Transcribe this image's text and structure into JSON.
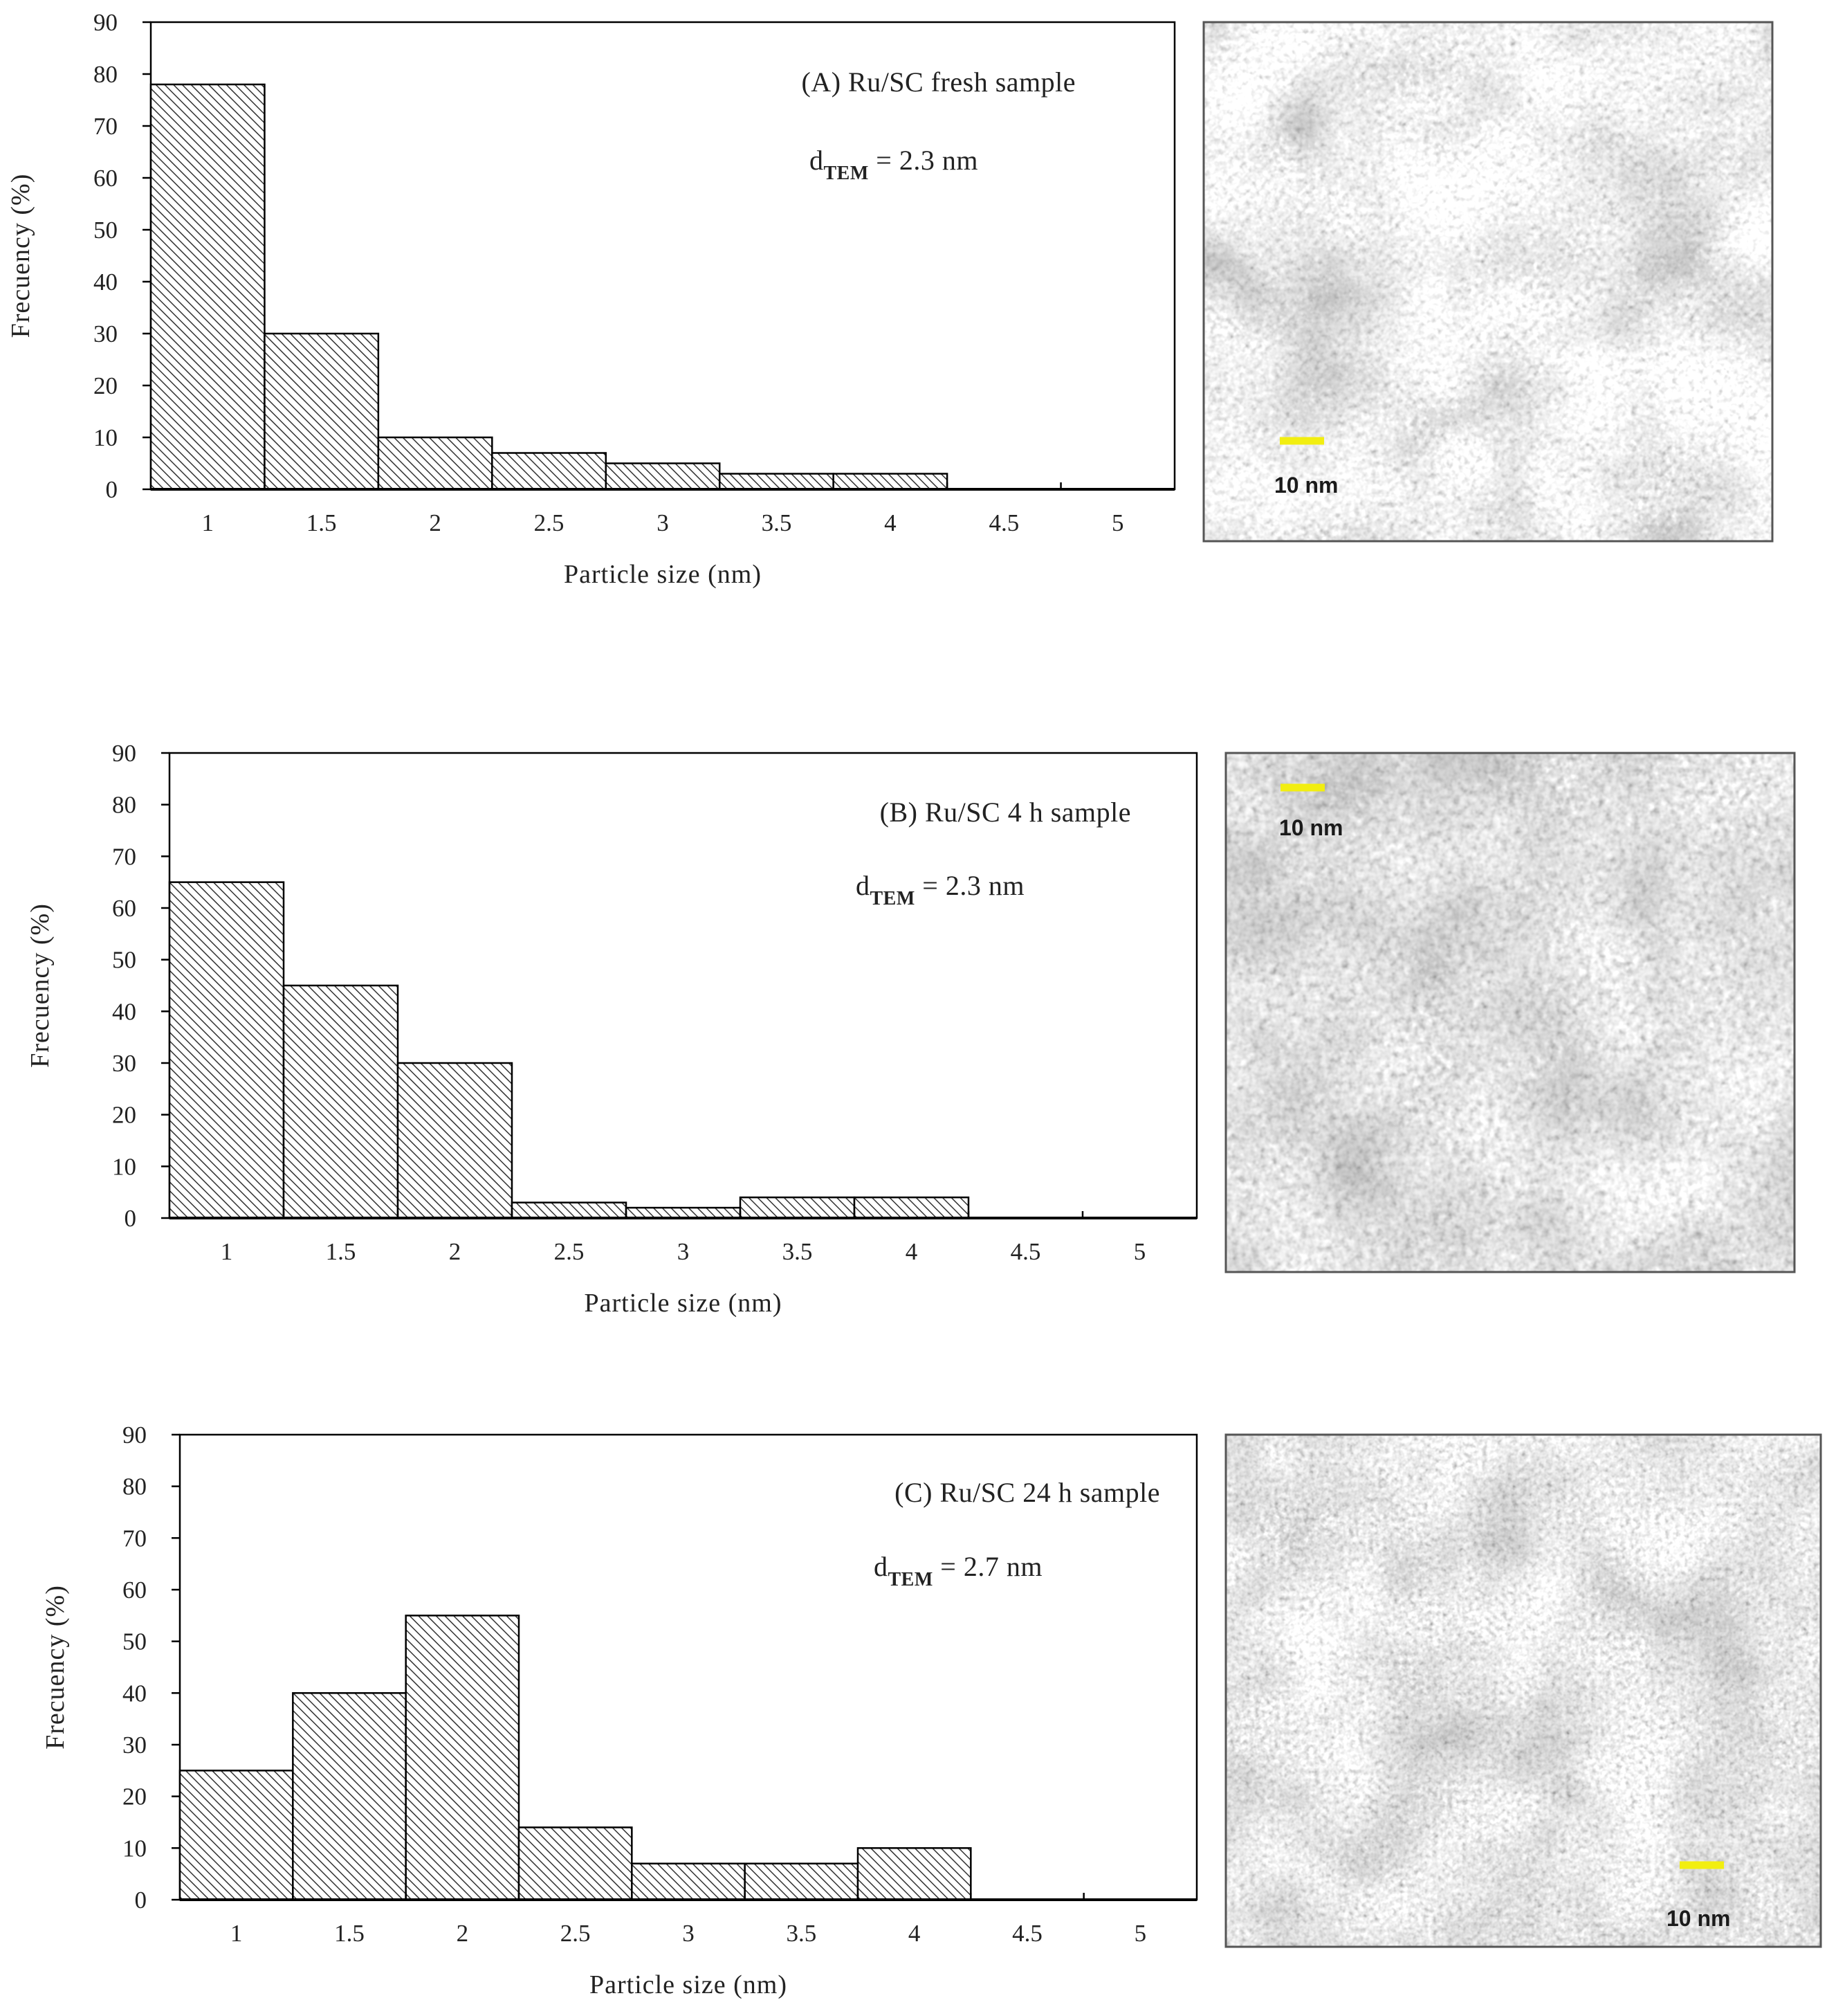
{
  "chart_data": [
    {
      "type": "bar",
      "id": "A",
      "annotation": "(A) Ru/SC fresh sample",
      "d_label": {
        "prefix": "d",
        "subscript": "TEM",
        "suffix": " = 2.3 nm"
      },
      "categories": [
        "1",
        "1.5",
        "2",
        "2.5",
        "3",
        "3.5",
        "4",
        "4.5",
        "5"
      ],
      "values": [
        78,
        30,
        10,
        7,
        5,
        3,
        3,
        0,
        0
      ],
      "ylim": [
        0,
        90
      ],
      "yticks": [
        "0",
        "10",
        "20",
        "30",
        "40",
        "50",
        "60",
        "70",
        "80",
        "90"
      ],
      "xlabel": "Particle size (nm)",
      "ylabel": "Frecuency (%)",
      "grid": false,
      "micrograph": {
        "scale_bar": "10 nm",
        "bar_color": "#f2ee10"
      }
    },
    {
      "type": "bar",
      "id": "B",
      "annotation": "(B) Ru/SC 4 h sample",
      "d_label": {
        "prefix": "d",
        "subscript": "TEM",
        "suffix": " = 2.3 nm"
      },
      "categories": [
        "1",
        "1.5",
        "2",
        "2.5",
        "3",
        "3.5",
        "4",
        "4.5",
        "5"
      ],
      "values": [
        65,
        45,
        30,
        3,
        2,
        4,
        4,
        0,
        0
      ],
      "ylim": [
        0,
        90
      ],
      "yticks": [
        "0",
        "10",
        "20",
        "30",
        "40",
        "50",
        "60",
        "70",
        "80",
        "90"
      ],
      "xlabel": "Particle size (nm)",
      "ylabel": "Frecuency (%)",
      "grid": false,
      "micrograph": {
        "scale_bar": "10 nm",
        "bar_color": "#f2ee10"
      }
    },
    {
      "type": "bar",
      "id": "C",
      "annotation": "(C) Ru/SC 24 h sample",
      "d_label": {
        "prefix": "d",
        "subscript": "TEM",
        "suffix": " = 2.7 nm"
      },
      "categories": [
        "1",
        "1.5",
        "2",
        "2.5",
        "3",
        "3.5",
        "4",
        "4.5",
        "5"
      ],
      "values": [
        25,
        40,
        55,
        14,
        7,
        7,
        10,
        0,
        0
      ],
      "ylim": [
        0,
        90
      ],
      "yticks": [
        "0",
        "10",
        "20",
        "30",
        "40",
        "50",
        "60",
        "70",
        "80",
        "90"
      ],
      "xlabel": "Particle size (nm)",
      "ylabel": "Frecuency (%)",
      "grid": false,
      "micrograph": {
        "scale_bar": "10 nm",
        "bar_color": "#f2ee10"
      }
    }
  ]
}
